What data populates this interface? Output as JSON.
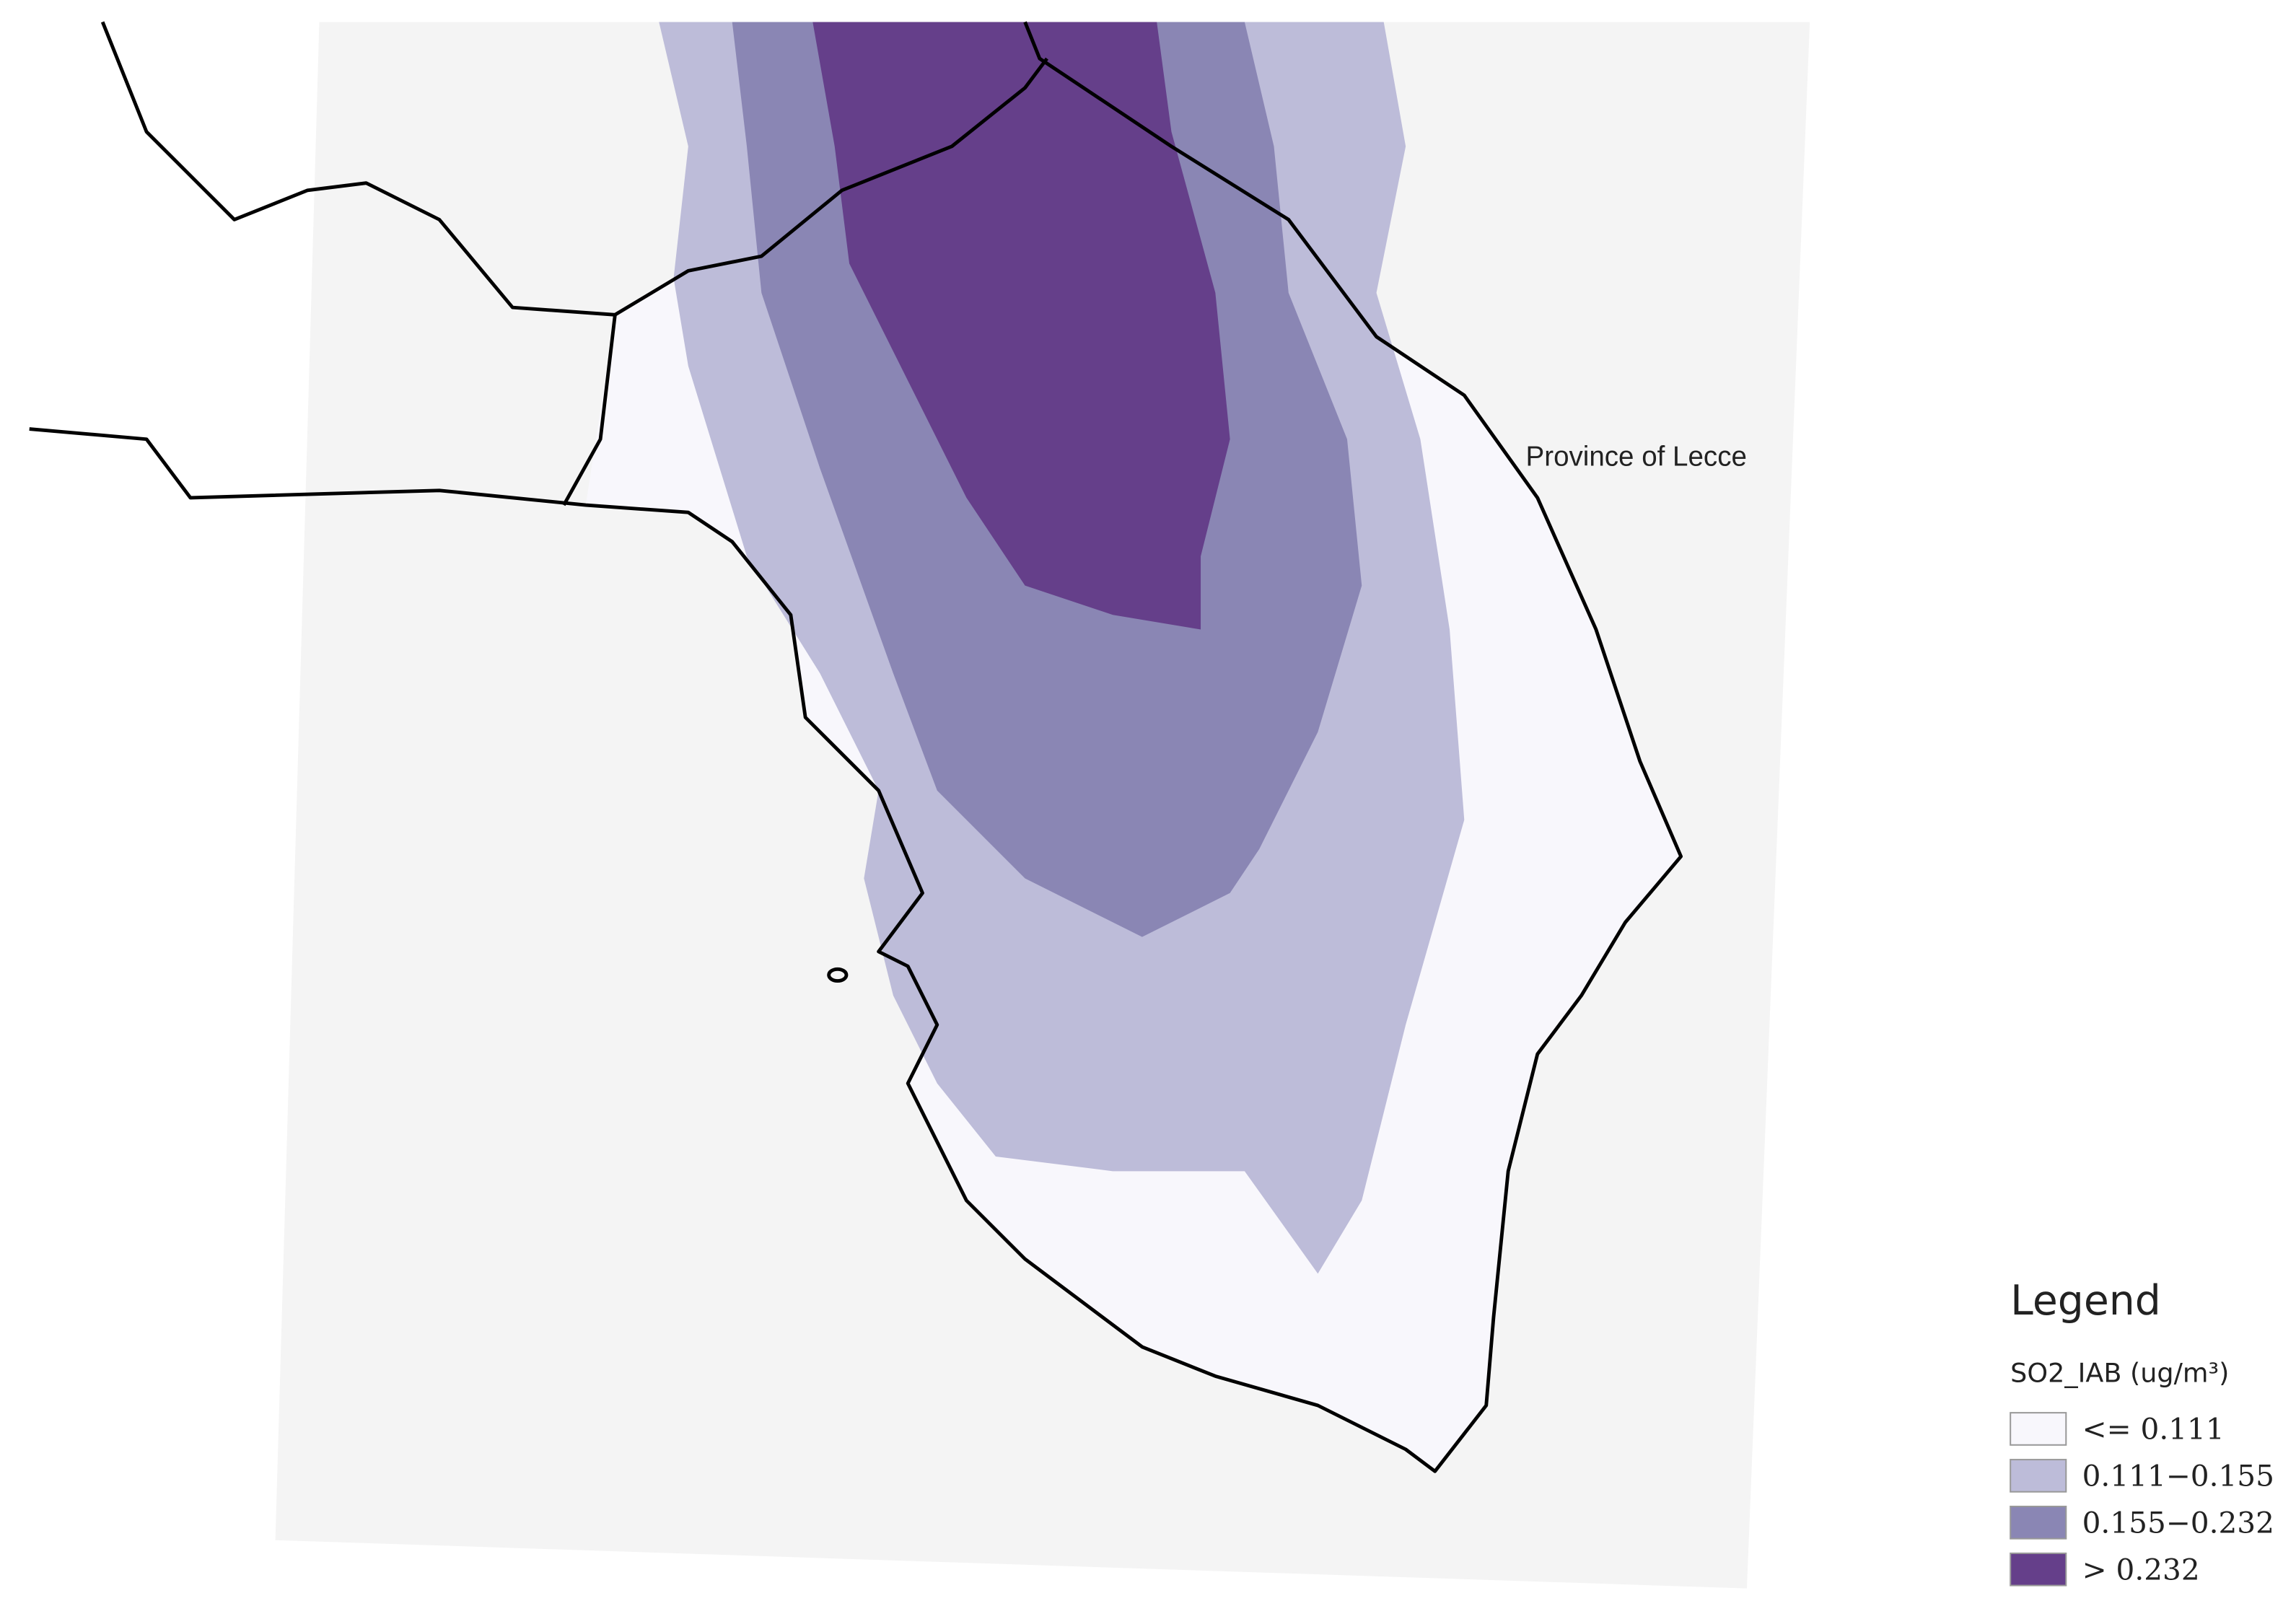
{
  "map": {
    "region_label": "Province of Lecce",
    "legend": {
      "title": "Legend",
      "subtitle": "SO2_IAB (ug/m³)",
      "items": [
        {
          "label": "<= 0.111",
          "color": "#f8f7fc"
        },
        {
          "label": "0.111−0.155",
          "color": "#bdbcd9"
        },
        {
          "label": "0.155−0.232",
          "color": "#8a86b4"
        },
        {
          "label": "> 0.232",
          "color": "#653f8a"
        }
      ]
    }
  }
}
